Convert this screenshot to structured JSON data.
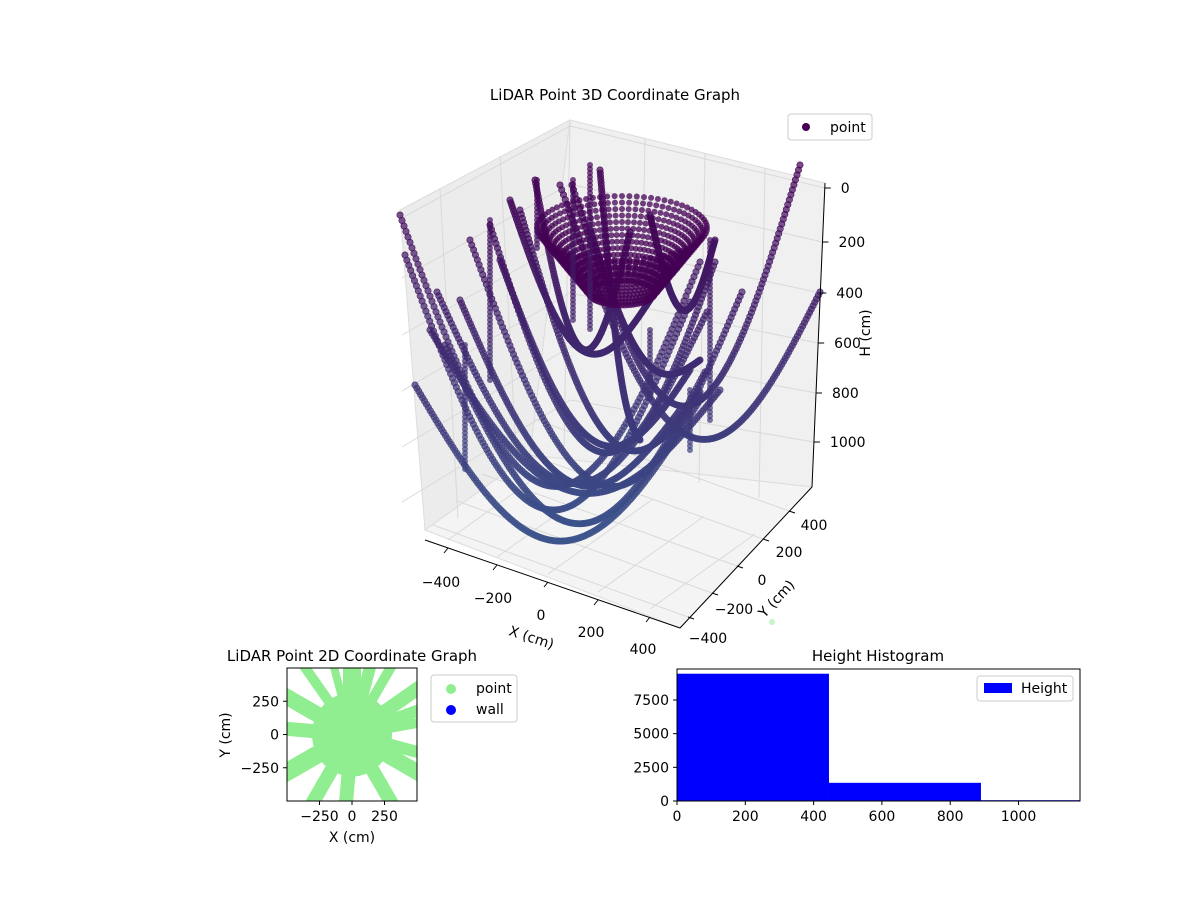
{
  "colors": {
    "viridis_dark": "#440154",
    "viridis_mid": "#3b528b",
    "scatter2d": "#90ee90",
    "wall": "#0000ff",
    "hist": "#0000ff",
    "pane": "#f2f2f2",
    "grid": "#d9d9d9"
  },
  "chart_data": [
    {
      "type": "scatter",
      "title": "LiDAR Point 3D Coordinate Graph",
      "xlabel": "X (cm)",
      "ylabel": "Y (cm)",
      "zlabel": "H (cm)",
      "x_ticks": [
        "−400",
        "−200",
        "0",
        "200",
        "400"
      ],
      "y_ticks": [
        "−400",
        "−200",
        "0",
        "200",
        "400"
      ],
      "z_ticks": [
        "0",
        "200",
        "400",
        "600",
        "800",
        "1000"
      ],
      "xlim": [
        -500,
        500
      ],
      "ylim": [
        -500,
        500
      ],
      "zlim": [
        0,
        1150
      ],
      "z_inverted": true,
      "legend": {
        "placement": "top-right",
        "entries": [
          "point"
        ]
      },
      "grid": true,
      "colormap": "viridis",
      "series": [
        {
          "name": "point",
          "shape": "hanging arcs radiating from centre"
        }
      ]
    },
    {
      "type": "scatter",
      "title": "LiDAR Point 2D Coordinate Graph",
      "xlabel": "X (cm)",
      "ylabel": "Y (cm)",
      "x_ticks": [
        "−250",
        "0",
        "250"
      ],
      "y_ticks": [
        "250",
        "0",
        "−250"
      ],
      "xlim": [
        -500,
        500
      ],
      "ylim": [
        -500,
        500
      ],
      "legend": {
        "placement": "outside-right",
        "entries": [
          "point",
          "wall"
        ]
      },
      "series": [
        {
          "name": "point",
          "color": "#90ee90"
        },
        {
          "name": "wall",
          "color": "#0000ff"
        }
      ]
    },
    {
      "type": "bar",
      "title": "Height Histogram",
      "xlabel": "",
      "ylabel": "",
      "x_ticks": [
        "0",
        "200",
        "400",
        "600",
        "800",
        "1000"
      ],
      "y_ticks": [
        "0",
        "2500",
        "5000",
        "7500"
      ],
      "xlim": [
        0,
        1180
      ],
      "ylim": [
        0,
        9800
      ],
      "legend": {
        "placement": "top-right",
        "entries": [
          "Height"
        ]
      },
      "bins": [
        {
          "start": 0,
          "end": 445,
          "count": 9450
        },
        {
          "start": 445,
          "end": 890,
          "count": 1350
        },
        {
          "start": 890,
          "end": 1180,
          "count": 60
        }
      ]
    }
  ]
}
